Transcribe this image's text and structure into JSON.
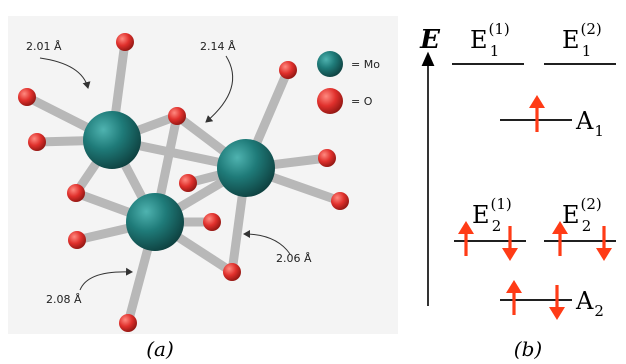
{
  "panel_a": {
    "caption": "(a)",
    "legend": [
      {
        "symbol": "mo-atom",
        "label": "= Mo",
        "color": "#1e7b7b"
      },
      {
        "symbol": "o-atom",
        "label": "= O",
        "color": "#e0302c"
      }
    ],
    "bond_labels": [
      {
        "id": "bond-201",
        "text": "2.01 Å"
      },
      {
        "id": "bond-214",
        "text": "2.14 Å"
      },
      {
        "id": "bond-206",
        "text": "2.06 Å"
      },
      {
        "id": "bond-208",
        "text": "2.08 Å"
      }
    ]
  },
  "panel_b": {
    "caption": "(b)",
    "axis_label": "E",
    "levels": [
      {
        "id": "E1-1",
        "base": "E",
        "sub": "1",
        "sup": "(1)"
      },
      {
        "id": "E1-2",
        "base": "E",
        "sub": "1",
        "sup": "(2)"
      },
      {
        "id": "A1",
        "base": "A",
        "sub": "1",
        "sup": ""
      },
      {
        "id": "E2-1",
        "base": "E",
        "sub": "2",
        "sup": "(1)"
      },
      {
        "id": "E2-2",
        "base": "E",
        "sub": "2",
        "sup": "(2)"
      },
      {
        "id": "A2",
        "base": "A",
        "sub": "2",
        "sup": ""
      }
    ],
    "spin_color": "#ff3b16"
  }
}
